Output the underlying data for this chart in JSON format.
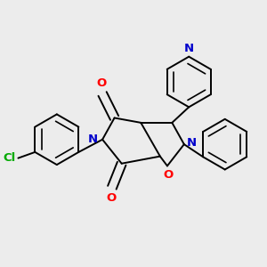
{
  "bg_color": "#ececec",
  "atom_colors": {
    "C": "#000000",
    "N": "#0000cc",
    "O": "#ff0000",
    "Cl": "#00aa00"
  },
  "figsize": [
    3.0,
    3.0
  ],
  "dpi": 100,
  "bond_lw": 1.4,
  "inner_lw": 1.2,
  "font_size": 9.5
}
